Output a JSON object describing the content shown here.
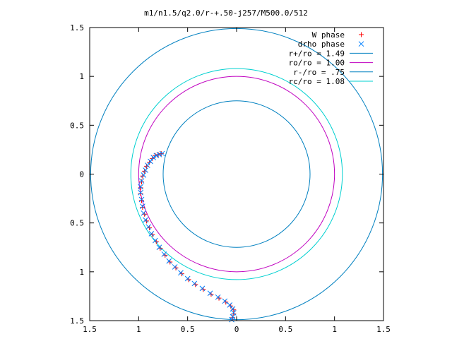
{
  "chart_data": {
    "type": "scatter",
    "title": "m1/n1.5/q2.0/r-+.50-j257/M500.0/512",
    "xlabel": "",
    "ylabel": "",
    "xlim": [
      -1.5,
      1.5
    ],
    "ylim": [
      -1.5,
      1.5
    ],
    "x_tick_values": [
      -1.5,
      -1,
      -0.5,
      0,
      0.5,
      1,
      1.5
    ],
    "x_tick_labels": [
      "1.5",
      "1",
      "0.5",
      "0",
      "0.5",
      "1",
      "1.5"
    ],
    "y_tick_values": [
      1.5,
      1,
      0.5,
      0,
      -0.5,
      -1,
      -1.5
    ],
    "y_tick_labels": [
      "1.5",
      "1",
      "0.5",
      "0",
      "0.5",
      "1",
      "1.5"
    ],
    "grid": false,
    "legend_position": "top-right",
    "legend": [
      {
        "label": "W phase",
        "marker": "+",
        "color": "#ff0000"
      },
      {
        "label": "drho phase",
        "marker": "x",
        "color": "#0080ff"
      },
      {
        "label": "r+/ro = 1.49",
        "marker": "line",
        "color": "#0080c0"
      },
      {
        "label": "ro/ro = 1.00",
        "marker": "line",
        "color": "#c000c0"
      },
      {
        "label": "r-/ro = .75",
        "marker": "line",
        "color": "#0080c0"
      },
      {
        "label": "rc/ro = 1.08",
        "marker": "line",
        "color": "#00d0d0"
      }
    ],
    "circles": [
      {
        "name": "r+/ro = 1.49",
        "radius": 1.49,
        "color": "#0080c0"
      },
      {
        "name": "ro/ro = 1.00",
        "radius": 1.0,
        "color": "#c000c0"
      },
      {
        "name": "r-/ro = .75",
        "radius": 0.75,
        "color": "#0080c0"
      },
      {
        "name": "rc/ro = 1.08",
        "radius": 1.08,
        "color": "#00d0d0"
      }
    ],
    "series": [
      {
        "name": "W phase",
        "marker": "+",
        "color": "#ff0000",
        "points": [
          [
            -0.77,
            0.21
          ],
          [
            -0.8,
            0.2
          ],
          [
            -0.83,
            0.19
          ],
          [
            -0.86,
            0.16
          ],
          [
            -0.89,
            0.12
          ],
          [
            -0.92,
            0.08
          ],
          [
            -0.94,
            0.03
          ],
          [
            -0.96,
            -0.02
          ],
          [
            -0.97,
            -0.08
          ],
          [
            -0.98,
            -0.14
          ],
          [
            -0.98,
            -0.2
          ],
          [
            -0.97,
            -0.27
          ],
          [
            -0.96,
            -0.34
          ],
          [
            -0.94,
            -0.41
          ],
          [
            -0.92,
            -0.48
          ],
          [
            -0.89,
            -0.55
          ],
          [
            -0.86,
            -0.62
          ],
          [
            -0.82,
            -0.69
          ],
          [
            -0.78,
            -0.76
          ],
          [
            -0.73,
            -0.83
          ],
          [
            -0.68,
            -0.9
          ],
          [
            -0.62,
            -0.96
          ],
          [
            -0.56,
            -1.02
          ],
          [
            -0.49,
            -1.08
          ],
          [
            -0.42,
            -1.13
          ],
          [
            -0.34,
            -1.18
          ],
          [
            -0.26,
            -1.23
          ],
          [
            -0.18,
            -1.27
          ],
          [
            -0.11,
            -1.31
          ],
          [
            -0.06,
            -1.35
          ],
          [
            -0.03,
            -1.39
          ],
          [
            -0.03,
            -1.43
          ],
          [
            -0.04,
            -1.47
          ]
        ]
      },
      {
        "name": "drho phase",
        "marker": "x",
        "color": "#0080ff",
        "points": [
          [
            -0.76,
            0.21
          ],
          [
            -0.79,
            0.2
          ],
          [
            -0.82,
            0.19
          ],
          [
            -0.85,
            0.17
          ],
          [
            -0.88,
            0.13
          ],
          [
            -0.91,
            0.09
          ],
          [
            -0.93,
            0.04
          ],
          [
            -0.95,
            -0.01
          ],
          [
            -0.97,
            -0.07
          ],
          [
            -0.98,
            -0.13
          ],
          [
            -0.98,
            -0.19
          ],
          [
            -0.97,
            -0.26
          ],
          [
            -0.96,
            -0.33
          ],
          [
            -0.95,
            -0.4
          ],
          [
            -0.93,
            -0.47
          ],
          [
            -0.9,
            -0.54
          ],
          [
            -0.87,
            -0.61
          ],
          [
            -0.83,
            -0.68
          ],
          [
            -0.79,
            -0.75
          ],
          [
            -0.74,
            -0.82
          ],
          [
            -0.69,
            -0.89
          ],
          [
            -0.63,
            -0.95
          ],
          [
            -0.57,
            -1.01
          ],
          [
            -0.5,
            -1.07
          ],
          [
            -0.43,
            -1.12
          ],
          [
            -0.35,
            -1.17
          ],
          [
            -0.27,
            -1.22
          ],
          [
            -0.19,
            -1.26
          ],
          [
            -0.12,
            -1.3
          ],
          [
            -0.07,
            -1.34
          ],
          [
            -0.04,
            -1.38
          ],
          [
            -0.03,
            -1.42
          ],
          [
            -0.04,
            -1.46
          ],
          [
            -0.05,
            -1.49
          ]
        ]
      }
    ]
  }
}
